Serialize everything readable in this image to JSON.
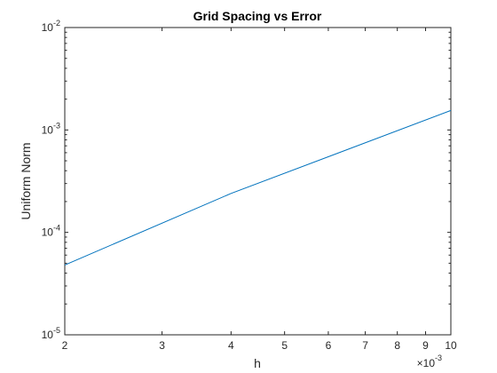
{
  "chart_data": {
    "type": "line",
    "title": "Grid Spacing vs Error",
    "xlabel": "h",
    "ylabel": "Uniform Norm",
    "x_scale": "log",
    "y_scale": "log",
    "xlim": [
      0.002,
      0.01
    ],
    "ylim": [
      1e-05,
      0.01
    ],
    "x_tick_values": [
      0.002,
      0.003,
      0.004,
      0.005,
      0.006,
      0.007,
      0.008,
      0.009,
      0.01
    ],
    "x_tick_labels": [
      "2",
      "3",
      "4",
      "5",
      "6",
      "7",
      "8",
      "9",
      "10"
    ],
    "x_multiplier": "×10",
    "x_multiplier_exponent": "-3",
    "y_tick_values": [
      1e-05,
      0.0001,
      0.001,
      0.01
    ],
    "y_tick_base": "10",
    "y_tick_exponents": [
      "-5",
      "-4",
      "-3",
      "-2"
    ],
    "grid": false,
    "series": [
      {
        "color": "#0072BD",
        "x": [
          0.002,
          0.004,
          0.01
        ],
        "y": [
          4.8e-05,
          0.00024,
          0.00155
        ]
      }
    ]
  }
}
